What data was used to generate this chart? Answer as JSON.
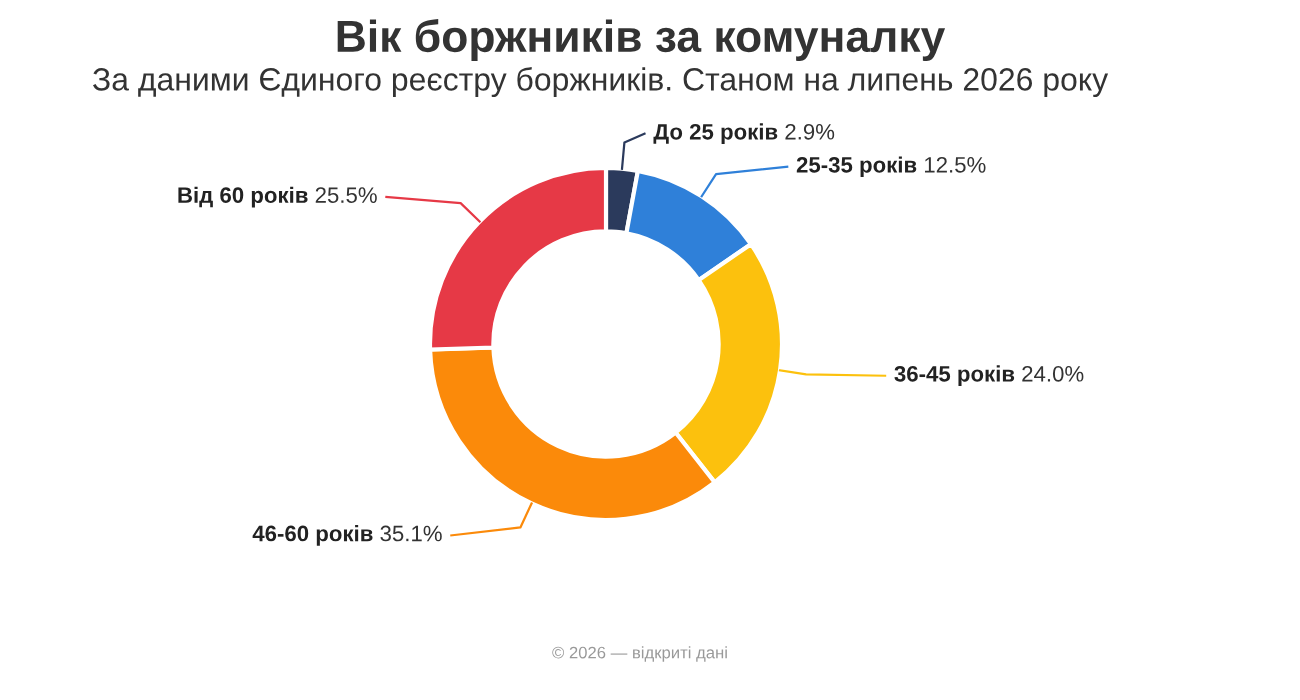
{
  "chart_data": {
    "type": "donut",
    "title": "Вік боржників за комуналку",
    "subtitle": "За даними Єдиного реєстру боржників. Станом на липень 2026 року",
    "categories": [
      "До 25 років",
      "25-35 років",
      "36-45 років",
      "46-60 років",
      "Від 60 років"
    ],
    "values": [
      2.9,
      12.5,
      24.0,
      35.1,
      25.5
    ],
    "value_labels": [
      "2.9%",
      "12.5%",
      "24.0%",
      "35.1%",
      "25.5%"
    ],
    "colors": [
      "#2b3a5c",
      "#2f80d9",
      "#fcc10d",
      "#fb8a0a",
      "#e63946"
    ],
    "annotations": [
      "© 2026 — відкриті дані"
    ]
  }
}
